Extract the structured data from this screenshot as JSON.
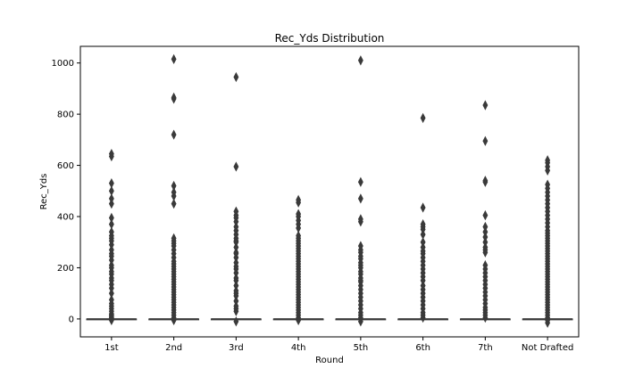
{
  "chart_data": {
    "type": "box",
    "title": "Rec_Yds Distribution",
    "xlabel": "Round",
    "ylabel": "Rec_Yds",
    "ylim": [
      -70,
      1065
    ],
    "yticks": [
      0,
      200,
      400,
      600,
      800,
      1000
    ],
    "categories": [
      "1st",
      "2nd",
      "3rd",
      "4th",
      "5th",
      "6th",
      "7th",
      "Not Drafted"
    ],
    "box_color": "#3a3a3a",
    "boxes": [
      {
        "category": "1st",
        "q1": 0,
        "median": 0,
        "q3": 0,
        "whisker_low": 0,
        "whisker_high": 0,
        "outliers": [
          -5,
          2,
          5,
          10,
          15,
          20,
          30,
          40,
          50,
          60,
          75,
          100,
          120,
          135,
          150,
          160,
          175,
          185,
          200,
          210,
          230,
          245,
          255,
          270,
          290,
          305,
          315,
          325,
          340,
          370,
          395,
          450,
          470,
          500,
          530,
          635,
          645
        ]
      },
      {
        "category": "2nd",
        "q1": 0,
        "median": 0,
        "q3": 0,
        "whisker_low": 0,
        "whisker_high": 0,
        "outliers": [
          -5,
          5,
          15,
          25,
          35,
          45,
          55,
          65,
          75,
          85,
          95,
          105,
          115,
          125,
          135,
          145,
          155,
          165,
          175,
          185,
          195,
          205,
          215,
          225,
          240,
          255,
          270,
          285,
          295,
          305,
          315,
          450,
          480,
          495,
          520,
          720,
          860,
          865,
          1015
        ]
      },
      {
        "category": "3rd",
        "q1": 0,
        "median": 0,
        "q3": 0,
        "whisker_low": 0,
        "whisker_high": 0,
        "outliers": [
          -10,
          30,
          40,
          50,
          70,
          90,
          100,
          110,
          130,
          150,
          160,
          180,
          195,
          205,
          220,
          240,
          255,
          260,
          280,
          300,
          305,
          315,
          330,
          345,
          360,
          380,
          395,
          405,
          420,
          595,
          945
        ]
      },
      {
        "category": "4th",
        "q1": 0,
        "median": 0,
        "q3": 0,
        "whisker_low": 0,
        "whisker_high": 0,
        "outliers": [
          -5,
          5,
          15,
          25,
          35,
          45,
          55,
          65,
          75,
          85,
          95,
          105,
          115,
          125,
          135,
          145,
          155,
          165,
          175,
          185,
          195,
          205,
          215,
          225,
          235,
          245,
          255,
          265,
          275,
          285,
          295,
          305,
          315,
          325,
          355,
          370,
          385,
          400,
          410,
          455,
          465
        ]
      },
      {
        "category": "5th",
        "q1": 0,
        "median": 0,
        "q3": 0,
        "whisker_low": 0,
        "whisker_high": 0,
        "outliers": [
          -10,
          5,
          15,
          25,
          40,
          55,
          70,
          85,
          100,
          115,
          130,
          145,
          150,
          160,
          175,
          185,
          200,
          210,
          220,
          235,
          245,
          260,
          270,
          285,
          380,
          390,
          470,
          535,
          1010
        ]
      },
      {
        "category": "6th",
        "q1": 0,
        "median": 0,
        "q3": 0,
        "whisker_low": 0,
        "whisker_high": 0,
        "outliers": [
          5,
          15,
          25,
          40,
          55,
          70,
          85,
          100,
          115,
          130,
          150,
          165,
          180,
          195,
          210,
          225,
          240,
          255,
          265,
          280,
          300,
          330,
          350,
          360,
          370,
          435,
          785
        ]
      },
      {
        "category": "7th",
        "q1": 0,
        "median": 0,
        "q3": 0,
        "whisker_low": 0,
        "whisker_high": 0,
        "outliers": [
          5,
          15,
          25,
          35,
          45,
          60,
          75,
          90,
          105,
          120,
          135,
          150,
          165,
          180,
          195,
          210,
          260,
          270,
          280,
          300,
          320,
          340,
          360,
          405,
          535,
          540,
          695,
          835
        ]
      },
      {
        "category": "Not Drafted",
        "q1": 0,
        "median": 0,
        "q3": 0,
        "whisker_low": 0,
        "whisker_high": 0,
        "outliers": [
          -15,
          -5,
          5,
          15,
          25,
          35,
          45,
          55,
          65,
          75,
          85,
          95,
          105,
          115,
          125,
          135,
          145,
          155,
          165,
          175,
          185,
          195,
          205,
          215,
          225,
          235,
          245,
          255,
          265,
          275,
          285,
          295,
          305,
          315,
          325,
          335,
          345,
          360,
          375,
          390,
          405,
          420,
          435,
          450,
          465,
          480,
          495,
          510,
          525,
          580,
          595,
          610,
          620
        ]
      }
    ]
  }
}
